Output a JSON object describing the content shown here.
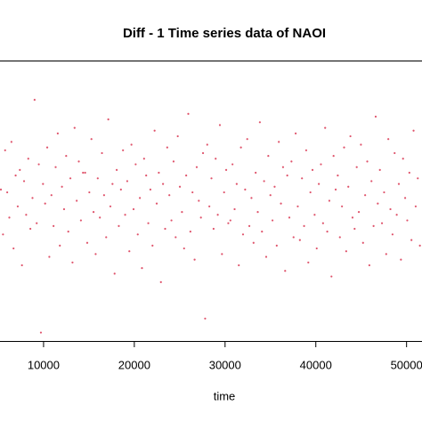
{
  "chart_data": {
    "type": "scatter",
    "title": "Diff - 1 Time series data of NAOI",
    "x_label": "time",
    "xlim": [
      5200,
      51700
    ],
    "ylim": [
      -5,
      5
    ],
    "xticks": [
      10000,
      20000,
      30000,
      40000,
      50000
    ],
    "x": [
      5300,
      5532,
      5764,
      5996,
      6228,
      6460,
      6692,
      6924,
      7156,
      7388,
      7620,
      7852,
      8084,
      8316,
      8548,
      8780,
      9012,
      9244,
      9476,
      9708,
      9940,
      10172,
      10404,
      10636,
      10868,
      11100,
      11332,
      11564,
      11796,
      12028,
      12260,
      12492,
      12724,
      12956,
      13188,
      13420,
      13652,
      13884,
      14116,
      14348,
      14580,
      14812,
      15044,
      15276,
      15508,
      15740,
      15972,
      16204,
      16436,
      16668,
      16900,
      17132,
      17364,
      17596,
      17828,
      18060,
      18292,
      18524,
      18756,
      18988,
      19220,
      19452,
      19684,
      19916,
      20148,
      20380,
      20612,
      20844,
      21076,
      21308,
      21540,
      21772,
      22004,
      22236,
      22468,
      22700,
      22932,
      23164,
      23396,
      23628,
      23860,
      24092,
      24324,
      24556,
      24788,
      25020,
      25252,
      25484,
      25716,
      25948,
      26180,
      26412,
      26644,
      26876,
      27108,
      27340,
      27572,
      27804,
      28036,
      28268,
      28500,
      28732,
      28964,
      29196,
      29428,
      29660,
      29892,
      30124,
      30356,
      30588,
      30820,
      31052,
      31284,
      31516,
      31748,
      31980,
      32212,
      32444,
      32676,
      32908,
      33140,
      33372,
      33604,
      33836,
      34068,
      34300,
      34532,
      34764,
      34996,
      35228,
      35460,
      35692,
      35924,
      36156,
      36388,
      36620,
      36852,
      37084,
      37316,
      37548,
      37780,
      38012,
      38244,
      38476,
      38708,
      38940,
      39172,
      39404,
      39636,
      39868,
      40100,
      40332,
      40564,
      40796,
      41028,
      41260,
      41492,
      41724,
      41956,
      42188,
      42420,
      42652,
      42884,
      43116,
      43348,
      43580,
      43812,
      44044,
      44276,
      44508,
      44740,
      44972,
      45204,
      45436,
      45668,
      45900,
      46132,
      46364,
      46596,
      46828,
      47060,
      47292,
      47524,
      47756,
      47988,
      48220,
      48452,
      48684,
      48916,
      49148,
      49380,
      49612,
      49844,
      50076,
      50308,
      50540,
      50772,
      51004,
      51236,
      51468
    ],
    "series": [
      {
        "color": "#df536b",
        "values": [
          0.4,
          -1.2,
          1.8,
          0.3,
          -0.6,
          2.1,
          -1.7,
          0.9,
          -0.2,
          1.1,
          -2.3,
          0.7,
          -0.5,
          1.5,
          -1.0,
          0.1,
          3.6,
          -0.8,
          1.3,
          -4.7,
          0.6,
          -0.1,
          1.9,
          -2.0,
          0.2,
          -0.9,
          1.2,
          2.4,
          -1.6,
          0.5,
          -0.3,
          1.6,
          -1.1,
          0.8,
          -2.2,
          2.6,
          0.0,
          1.4,
          -0.7,
          1.0,
          1.0,
          -1.5,
          0.3,
          2.2,
          -0.4,
          -1.9,
          0.8,
          -0.6,
          1.7,
          0.2,
          -1.3,
          2.9,
          -0.2,
          0.6,
          -2.6,
          1.1,
          -0.9,
          0.4,
          1.8,
          -0.5,
          0.7,
          -1.8,
          2.0,
          -0.3,
          1.3,
          -1.2,
          0.1,
          -2.4,
          1.5,
          0.9,
          -0.8,
          0.4,
          -1.6,
          2.5,
          -0.1,
          1.0,
          -2.9,
          0.6,
          -1.0,
          1.9,
          0.2,
          -0.7,
          1.4,
          -1.3,
          2.3,
          0.5,
          -0.4,
          -1.7,
          0.9,
          3.1,
          -1.1,
          0.3,
          -2.1,
          1.2,
          0.0,
          -0.6,
          1.7,
          -4.2,
          2.0,
          -0.2,
          0.8,
          -1.0,
          1.5,
          -0.5,
          2.7,
          -1.9,
          0.3,
          1.1,
          -0.8,
          -0.7,
          1.3,
          -0.3,
          0.6,
          -2.3,
          1.9,
          -1.2,
          0.4,
          2.2,
          -0.9,
          0.1,
          -1.5,
          1.0,
          -0.4,
          2.8,
          -1.1,
          0.7,
          -2.0,
          1.6,
          0.2,
          -0.7,
          0.5,
          -1.6,
          2.1,
          -0.1,
          1.2,
          -2.5,
          0.9,
          -0.6,
          1.4,
          -1.3,
          2.4,
          -0.2,
          -1.4,
          0.8,
          -0.9,
          1.8,
          -2.2,
          0.3,
          1.1,
          -0.5,
          -1.7,
          0.6,
          1.3,
          -0.8,
          2.6,
          -1.1,
          0.0,
          -2.7,
          1.6,
          0.4,
          0.9,
          -1.3,
          -0.2,
          1.9,
          -1.8,
          0.5,
          2.3,
          -0.6,
          -1.0,
          1.2,
          -0.4,
          2.0,
          -1.5,
          0.2,
          1.4,
          -2.3,
          0.7,
          -0.9,
          3.0,
          -0.1,
          1.1,
          -0.8,
          0.3,
          -1.9,
          2.2,
          -0.3,
          -1.2,
          1.7,
          -0.5,
          0.6,
          -2.1,
          1.5,
          0.1,
          -0.7,
          1.0,
          -1.4,
          2.5,
          -0.2,
          0.8,
          -1.6
        ]
      }
    ]
  }
}
